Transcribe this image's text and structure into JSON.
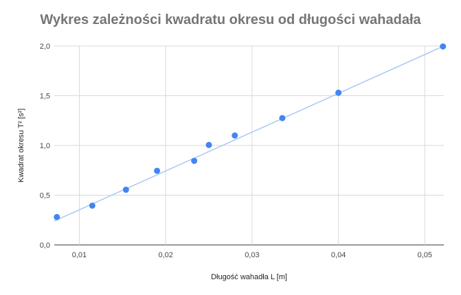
{
  "chart_data": {
    "type": "scatter",
    "title": "Wykres zależności kwadratu okresu od długości wahadała",
    "xlabel": "Długość wahadła L [m]",
    "ylabel": "Kwadrat okresu T² [s²]",
    "xlim": [
      0.0071,
      0.0522
    ],
    "ylim": [
      0,
      2.0
    ],
    "x_ticks": [
      0.01,
      0.02,
      0.03,
      0.04,
      0.05
    ],
    "x_tick_labels": [
      "0,01",
      "0,02",
      "0,03",
      "0,04",
      "0,05"
    ],
    "y_ticks": [
      0,
      0.5,
      1.0,
      1.5,
      2.0
    ],
    "y_tick_labels": [
      "0,0",
      "0,5",
      "1,0",
      "1,5",
      "2,0"
    ],
    "grid": true,
    "legend": "none",
    "series": [
      {
        "x": [
          0.0074,
          0.0115,
          0.0154,
          0.019,
          0.0233,
          0.025,
          0.028,
          0.0335,
          0.04,
          0.0521
        ],
        "y": [
          0.28,
          0.395,
          0.555,
          0.745,
          0.845,
          1.005,
          1.1,
          1.275,
          1.53,
          1.995
        ],
        "color": "#4285f4"
      }
    ],
    "trendline": {
      "x": [
        0.0071,
        0.0522
      ],
      "y": [
        0.24,
        2.0
      ],
      "color": "#a9c8f3"
    }
  }
}
